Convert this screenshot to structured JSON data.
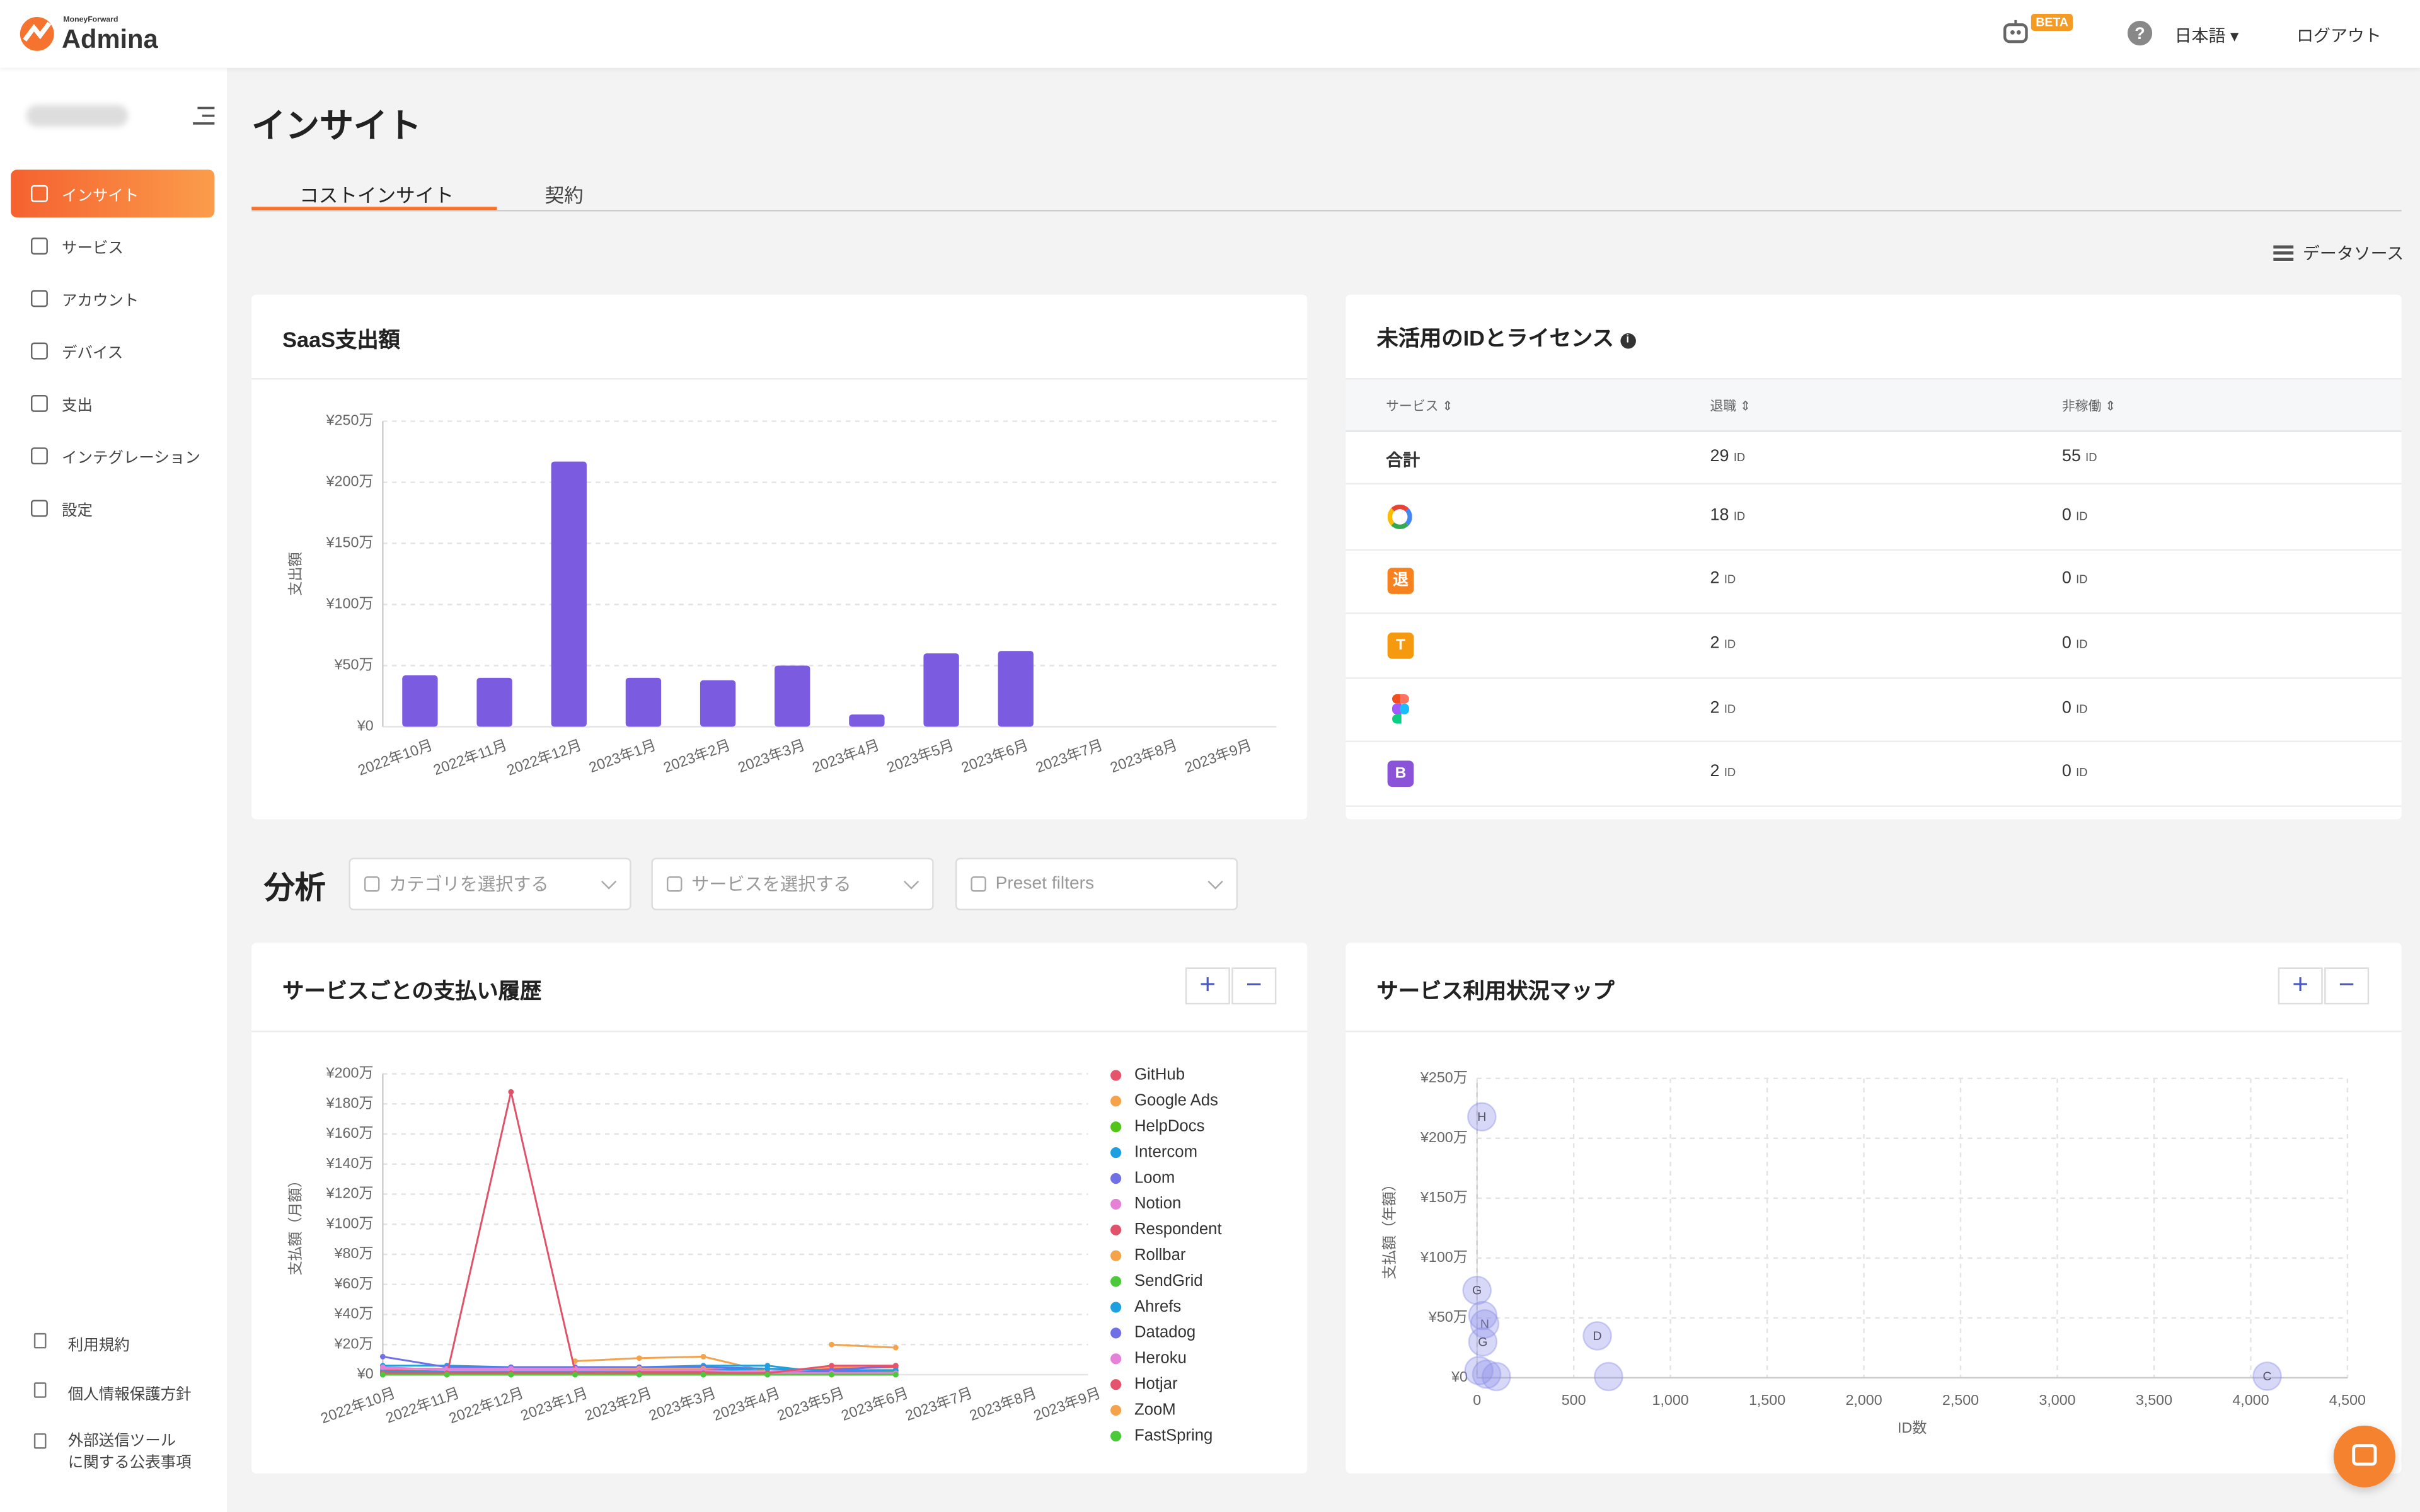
{
  "header": {
    "brand_small": "MoneyForward",
    "brand": "Admina",
    "beta": "BETA",
    "language": "日本語",
    "logout": "ログアウト"
  },
  "sidebar": {
    "nav": [
      "インサイト",
      "サービス",
      "アカウント",
      "デバイス",
      "支出",
      "インテグレーション",
      "設定"
    ],
    "footer": [
      "利用規約",
      "個人情報保護方針"
    ],
    "footer_notice": [
      "外部送信ツール",
      "に関する公表事項"
    ]
  },
  "page": {
    "title": "インサイト",
    "tabs": [
      "コストインサイト",
      "契約"
    ],
    "data_source": "データソース",
    "analysis": "分析",
    "filters": [
      "カテゴリを選択する",
      "サービスを選択する",
      "Preset filters"
    ]
  },
  "table": {
    "title": "未活用のIDとライセンス",
    "columns": [
      "サービス",
      "退職",
      "非稼働"
    ],
    "unit": "ID",
    "total_label": "合計",
    "total": [
      29,
      55
    ],
    "rows": [
      {
        "icon": null,
        "values": [
          18,
          0
        ]
      },
      {
        "icon": "退",
        "values": [
          2,
          0
        ]
      },
      {
        "icon": "T",
        "values": [
          2,
          0
        ]
      },
      {
        "icon": null,
        "values": [
          2,
          0
        ]
      },
      {
        "icon": "B",
        "values": [
          2,
          0
        ]
      }
    ]
  },
  "chart_data": [
    {
      "type": "bar",
      "title": "SaaS支出額",
      "y_label": "支出額",
      "categories": [
        "2022年10月",
        "2022年11月",
        "2022年12月",
        "2023年1月",
        "2023年2月",
        "2023年3月",
        "2023年4月",
        "2023年5月",
        "2023年6月",
        "2023年7月",
        "2023年8月",
        "2023年9月"
      ],
      "values": [
        420000,
        400000,
        2170000,
        400000,
        380000,
        500000,
        100000,
        600000,
        620000,
        null,
        null,
        null
      ],
      "color": "#7b5ce0",
      "ylim": [
        0,
        2500000
      ],
      "yticks": [
        {
          "value": 0,
          "label": "¥0"
        },
        {
          "value": 500000,
          "label": "¥50万"
        },
        {
          "value": 1000000,
          "label": "¥100万"
        },
        {
          "value": 1500000,
          "label": "¥150万"
        },
        {
          "value": 2000000,
          "label": "¥200万"
        },
        {
          "value": 2500000,
          "label": "¥250万"
        }
      ],
      "grid": true
    },
    {
      "type": "line",
      "title": "サービスごとの支払い履歴",
      "y_label": "支払額（月額）",
      "categories": [
        "2022年10月",
        "2022年11月",
        "2022年12月",
        "2023年1月",
        "2023年2月",
        "2023年3月",
        "2023年4月",
        "2023年5月",
        "2023年6月",
        "2023年7月",
        "2023年8月",
        "2023年9月"
      ],
      "ylim": [
        0,
        2000000
      ],
      "yticks": [
        {
          "value": 0,
          "label": "¥0"
        },
        {
          "value": 200000,
          "label": "¥20万"
        },
        {
          "value": 400000,
          "label": "¥40万"
        },
        {
          "value": 600000,
          "label": "¥60万"
        },
        {
          "value": 800000,
          "label": "¥80万"
        },
        {
          "value": 1000000,
          "label": "¥100万"
        },
        {
          "value": 1200000,
          "label": "¥120万"
        },
        {
          "value": 1400000,
          "label": "¥140万"
        },
        {
          "value": 1600000,
          "label": "¥160万"
        },
        {
          "value": 1800000,
          "label": "¥180万"
        },
        {
          "value": 2000000,
          "label": "¥200万"
        }
      ],
      "grid": true,
      "legend": "right",
      "series": [
        {
          "name": "GitHub",
          "color": "#e5546a",
          "values": [
            30000,
            20000,
            20000,
            20000,
            20000,
            20000,
            10000,
            40000,
            50000,
            null,
            null,
            null
          ]
        },
        {
          "name": "Google Ads",
          "color": "#f5a34b",
          "values": [
            null,
            null,
            null,
            90000,
            110000,
            120000,
            20000,
            50000,
            60000,
            null,
            null,
            null
          ]
        },
        {
          "name": "HelpDocs",
          "color": "#52c41a",
          "values": [
            10000,
            10000,
            10000,
            10000,
            10000,
            10000,
            10000,
            10000,
            20000,
            null,
            null,
            null
          ]
        },
        {
          "name": "Intercom",
          "color": "#1e9fe0",
          "values": [
            60000,
            60000,
            50000,
            50000,
            50000,
            60000,
            60000,
            10000,
            10000,
            null,
            null,
            null
          ]
        },
        {
          "name": "Loom",
          "color": "#6f6fe6",
          "values": [
            120000,
            50000,
            50000,
            50000,
            50000,
            50000,
            40000,
            20000,
            30000,
            null,
            null,
            null
          ]
        },
        {
          "name": "Notion",
          "color": "#e582d8",
          "values": [
            40000,
            40000,
            40000,
            40000,
            40000,
            40000,
            20000,
            30000,
            30000,
            null,
            null,
            null
          ]
        },
        {
          "name": "Respondent",
          "color": "#e0526a",
          "values": [
            0,
            0,
            1880000,
            20000,
            0,
            0,
            0,
            0,
            0,
            null,
            null,
            null
          ]
        },
        {
          "name": "Rollbar",
          "color": "#f5a34b",
          "values": [
            0,
            0,
            0,
            30000,
            40000,
            40000,
            0,
            0,
            0,
            null,
            null,
            null
          ]
        },
        {
          "name": "SendGrid",
          "color": "#4cc93a",
          "values": [
            0,
            0,
            0,
            0,
            0,
            0,
            0,
            10000,
            10000,
            null,
            null,
            null
          ]
        },
        {
          "name": "Ahrefs",
          "color": "#1e9fe0",
          "values": [
            20000,
            20000,
            20000,
            20000,
            30000,
            30000,
            40000,
            30000,
            30000,
            null,
            null,
            null
          ]
        },
        {
          "name": "Datadog",
          "color": "#6f6fe6",
          "values": [
            0,
            0,
            0,
            0,
            0,
            0,
            0,
            30000,
            60000,
            null,
            null,
            null
          ]
        },
        {
          "name": "Heroku",
          "color": "#e582d8",
          "values": [
            50000,
            30000,
            30000,
            30000,
            30000,
            30000,
            10000,
            10000,
            10000,
            null,
            null,
            null
          ]
        },
        {
          "name": "Hotjar",
          "color": "#e5546a",
          "values": [
            10000,
            10000,
            10000,
            10000,
            10000,
            10000,
            10000,
            60000,
            60000,
            null,
            null,
            null
          ]
        },
        {
          "name": "ZooM",
          "color": "#f5a34b",
          "values": [
            null,
            null,
            null,
            null,
            null,
            null,
            null,
            200000,
            180000,
            null,
            null,
            null
          ]
        },
        {
          "name": "FastSpring",
          "color": "#4cc93a",
          "values": [
            0,
            0,
            0,
            0,
            0,
            0,
            0,
            0,
            0,
            null,
            null,
            null
          ]
        }
      ]
    },
    {
      "type": "scatter",
      "title": "サービス利用状況マップ",
      "x_label": "ID数",
      "y_label": "支払額（年額）",
      "x": [
        25,
        0,
        40,
        30,
        30,
        10,
        50,
        100,
        622,
        680,
        4085
      ],
      "y": [
        2180000,
        730000,
        450000,
        520000,
        300000,
        60000,
        30000,
        10000,
        350000,
        10000,
        13000
      ],
      "labels": [
        "H",
        "G",
        "N",
        null,
        "G",
        null,
        null,
        null,
        "D",
        null,
        "C"
      ],
      "color": "#8c8fe8",
      "xlim": [
        0,
        4500
      ],
      "xticks": [
        0,
        500,
        {
          "value": 1000,
          "label": "1,000"
        },
        {
          "value": 1500,
          "label": "1,500"
        },
        {
          "value": 2000,
          "label": "2,000"
        },
        {
          "value": 2500,
          "label": "2,500"
        },
        {
          "value": 3000,
          "label": "3,000"
        },
        {
          "value": 3500,
          "label": "3,500"
        },
        {
          "value": 4000,
          "label": "4,000"
        },
        {
          "value": 4500,
          "label": "4,500"
        }
      ],
      "ylim": [
        0,
        2500000
      ],
      "yticks": [
        {
          "value": 0,
          "label": "¥0"
        },
        {
          "value": 500000,
          "label": "¥50万"
        },
        {
          "value": 1000000,
          "label": "¥100万"
        },
        {
          "value": 1500000,
          "label": "¥150万"
        },
        {
          "value": 2000000,
          "label": "¥200万"
        },
        {
          "value": 2500000,
          "label": "¥250万"
        }
      ],
      "grid": true
    }
  ]
}
